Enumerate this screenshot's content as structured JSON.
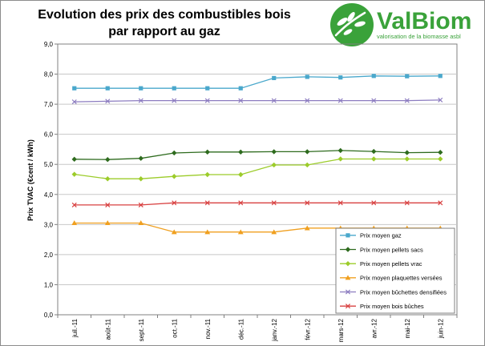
{
  "logo": {
    "name": "ValBiom",
    "tagline": "valorisation de la biomasse asbl",
    "color": "#3aa23a"
  },
  "chart_data": {
    "type": "line",
    "title_line1": "Evolution des prix des combustibles bois",
    "title_line2": "par rapport au gaz",
    "xlabel": "",
    "ylabel": "Prix TVAC (€cent / kWh)",
    "ylim": [
      0,
      9
    ],
    "ytick_step": 1,
    "ytick_labels": [
      "0,0",
      "1,0",
      "2,0",
      "3,0",
      "4,0",
      "5,0",
      "6,0",
      "7,0",
      "8,0",
      "9,0"
    ],
    "grid": "horizontal",
    "legend_position": "bottom-right",
    "categories": [
      "juil.-11",
      "août-11",
      "sept.-11",
      "oct.-11",
      "nov.-11",
      "déc.-11",
      "janv.-12",
      "févr.-12",
      "mars-12",
      "avr.-12",
      "mai-12",
      "juin-12"
    ],
    "series": [
      {
        "name": "Prix moyen gaz",
        "color": "#4aa8cc",
        "marker": "square",
        "values": [
          7.53,
          7.53,
          7.53,
          7.53,
          7.53,
          7.53,
          7.87,
          7.91,
          7.89,
          7.94,
          7.93,
          7.94
        ]
      },
      {
        "name": "Prix moyen pellets sacs",
        "color": "#2e6b1e",
        "marker": "diamond",
        "values": [
          5.17,
          5.16,
          5.2,
          5.38,
          5.41,
          5.41,
          5.42,
          5.42,
          5.46,
          5.43,
          5.39,
          5.4
        ]
      },
      {
        "name": "Prix moyen pellets vrac",
        "color": "#9ccc2a",
        "marker": "diamond",
        "values": [
          4.67,
          4.52,
          4.52,
          4.6,
          4.66,
          4.66,
          4.98,
          4.98,
          5.18,
          5.18,
          5.18,
          5.18
        ]
      },
      {
        "name": "Prix moyen plaquettes versées",
        "color": "#f0a020",
        "marker": "triangle",
        "values": [
          3.05,
          3.05,
          3.05,
          2.75,
          2.75,
          2.75,
          2.75,
          2.88,
          2.88,
          2.88,
          2.88,
          2.88
        ]
      },
      {
        "name": "Prix moyen bûchettes densifiées",
        "color": "#8c7cc0",
        "marker": "x",
        "values": [
          7.08,
          7.1,
          7.12,
          7.12,
          7.12,
          7.12,
          7.12,
          7.12,
          7.12,
          7.12,
          7.12,
          7.14
        ]
      },
      {
        "name": "Prix moyen bois bûches",
        "color": "#d84040",
        "marker": "x",
        "values": [
          3.65,
          3.65,
          3.65,
          3.72,
          3.72,
          3.72,
          3.72,
          3.72,
          3.72,
          3.72,
          3.72,
          3.72
        ]
      }
    ]
  }
}
